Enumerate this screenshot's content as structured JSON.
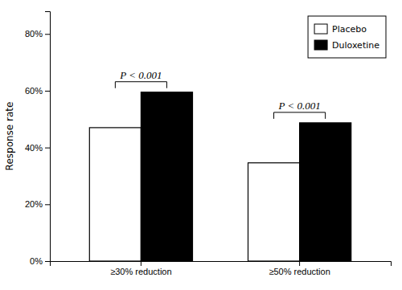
{
  "chart_data": {
    "type": "bar",
    "categories": [
      "≥30% reduction",
      "≥50% reduction"
    ],
    "series": [
      {
        "name": "Placebo",
        "color": "#ffffff",
        "values": [
          0.47,
          0.346
        ]
      },
      {
        "name": "Duloxetine",
        "color": "#000000",
        "values": [
          0.595,
          0.487
        ]
      }
    ],
    "y_label": "Response rate",
    "ylim": [
      0,
      0.88
    ],
    "yticks": [
      {
        "value": 0.0,
        "label": "0%"
      },
      {
        "value": 0.2,
        "label": "20%"
      },
      {
        "value": 0.4,
        "label": "40%"
      },
      {
        "value": 0.6,
        "label": "60%"
      },
      {
        "value": 0.8,
        "label": "80%"
      }
    ],
    "annotations": [
      {
        "text": "P < 0.001",
        "category": "≥30% reduction"
      },
      {
        "text": "P < 0.001",
        "category": "≥50% reduction"
      }
    ],
    "legend": "upper right",
    "grid": false
  }
}
